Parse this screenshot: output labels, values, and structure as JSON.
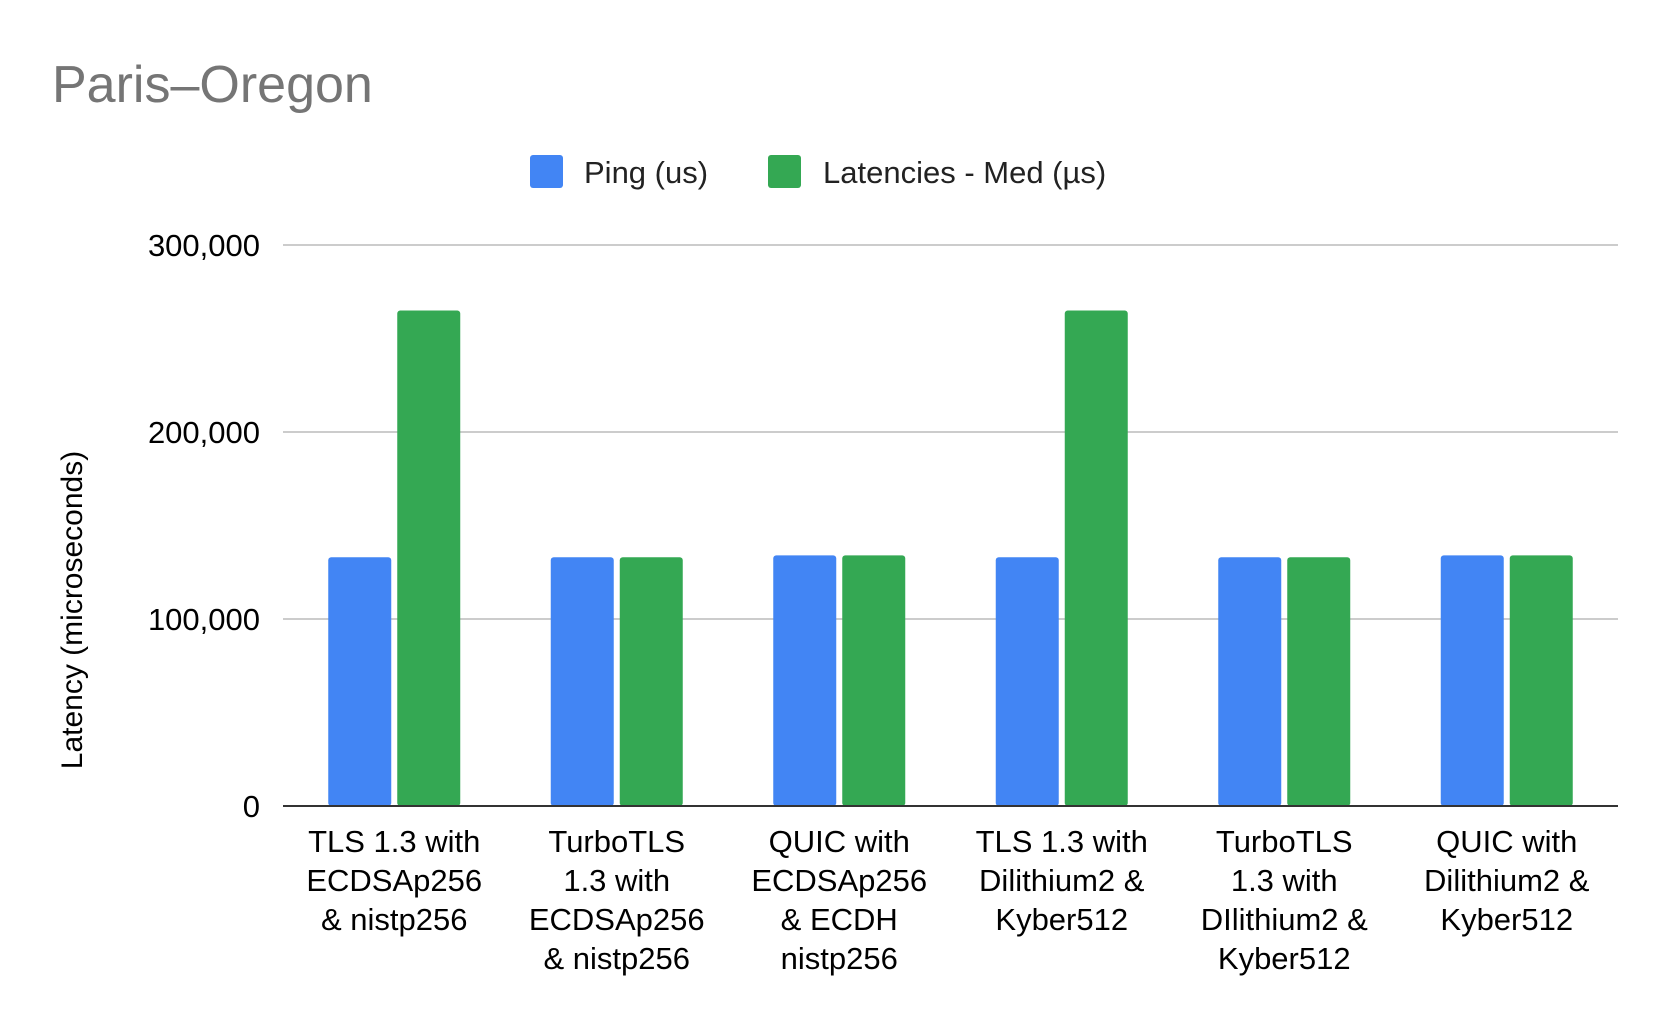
{
  "chart_data": {
    "type": "bar",
    "title": "Paris–Oregon",
    "xlabel": "",
    "ylabel": "Latency (microseconds)",
    "ylim": [
      0,
      300000
    ],
    "yticks": [
      0,
      100000,
      200000,
      300000
    ],
    "ytick_labels": [
      "0",
      "100,000",
      "200,000",
      "300,000"
    ],
    "grid": true,
    "legend_position": "top-center",
    "categories": [
      "TLS 1.3 with ECDSAp256 & nistp256",
      "TurboTLS 1.3 with ECDSAp256 & nistp256",
      "QUIC with ECDSAp256 & ECDH nistp256",
      "TLS 1.3  with Dilithium2 & Kyber512",
      "TurboTLS 1.3 with DIlithium2 & Kyber512",
      "QUIC with Dilithium2 & Kyber512"
    ],
    "category_lines": [
      [
        "TLS 1.3 with",
        "ECDSAp256",
        "& nistp256"
      ],
      [
        "TurboTLS",
        "1.3 with",
        "ECDSAp256",
        "& nistp256"
      ],
      [
        "QUIC with",
        "ECDSAp256",
        "& ECDH",
        "nistp256"
      ],
      [
        "TLS 1.3  with",
        "Dilithium2 &",
        "Kyber512"
      ],
      [
        "TurboTLS",
        "1.3 with",
        "DIlithium2 &",
        "Kyber512"
      ],
      [
        "QUIC with",
        "Dilithium2 &",
        "Kyber512"
      ]
    ],
    "series": [
      {
        "name": "Ping (us)",
        "color": "#4285F4",
        "values": [
          133000,
          133000,
          134000,
          133000,
          133000,
          134000
        ]
      },
      {
        "name": "Latencies - Med (µs)",
        "color": "#34A853",
        "values": [
          265000,
          133000,
          134000,
          265000,
          133000,
          134000
        ]
      }
    ]
  }
}
